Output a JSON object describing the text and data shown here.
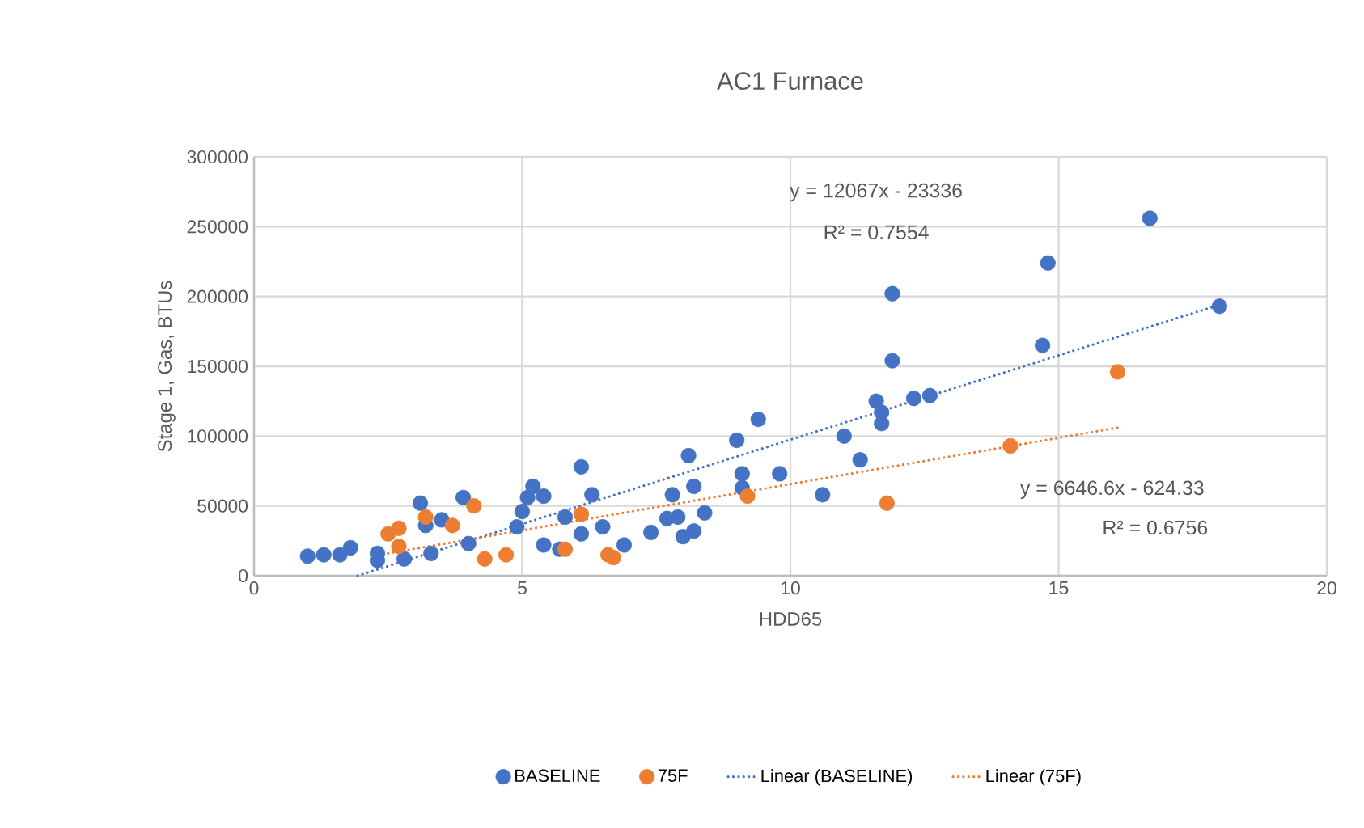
{
  "chart_data": {
    "type": "scatter",
    "title": "AC1 Furnace",
    "xlabel": "HDD65",
    "ylabel": "Stage 1, Gas, BTUs",
    "xlim": [
      0,
      20
    ],
    "xticks": [
      0,
      5,
      10,
      15,
      20
    ],
    "ylim": [
      0,
      300000
    ],
    "yticks": [
      0,
      50000,
      100000,
      150000,
      200000,
      250000,
      300000
    ],
    "grid": true,
    "legend": "bottom",
    "marker": "circle",
    "series": [
      {
        "name": "BASELINE",
        "color": "#4472c4",
        "x": [
          1.0,
          1.3,
          1.6,
          1.8,
          2.3,
          2.3,
          2.8,
          3.1,
          3.2,
          3.3,
          3.5,
          3.9,
          4.0,
          4.9,
          5.0,
          5.1,
          5.2,
          5.4,
          5.4,
          5.7,
          5.8,
          6.1,
          6.1,
          6.3,
          6.5,
          6.9,
          7.4,
          7.7,
          7.8,
          7.9,
          8.0,
          8.1,
          8.2,
          8.2,
          8.4,
          9.0,
          9.1,
          9.1,
          9.4,
          9.8,
          10.6,
          11.0,
          11.3,
          11.6,
          11.7,
          11.7,
          11.9,
          11.9,
          12.3,
          12.6,
          14.7,
          14.8,
          16.7,
          18.0
        ],
        "values": [
          14000,
          15000,
          15000,
          20000,
          16000,
          11000,
          12000,
          52000,
          36000,
          16000,
          40000,
          56000,
          23000,
          35000,
          46000,
          56000,
          64000,
          57000,
          22000,
          19000,
          42000,
          78000,
          30000,
          58000,
          35000,
          22000,
          31000,
          41000,
          58000,
          42000,
          28000,
          86000,
          64000,
          32000,
          45000,
          97000,
          73000,
          63000,
          112000,
          73000,
          58000,
          100000,
          83000,
          125000,
          117000,
          109000,
          202000,
          154000,
          127000,
          129000,
          165000,
          224000,
          256000,
          193000
        ]
      },
      {
        "name": "75F",
        "color": "#ed7d31",
        "x": [
          2.5,
          2.7,
          2.7,
          3.2,
          3.7,
          4.1,
          4.3,
          4.7,
          5.8,
          6.1,
          6.6,
          6.7,
          9.2,
          11.8,
          14.1,
          16.1
        ],
        "values": [
          30000,
          21000,
          34000,
          42000,
          36000,
          50000,
          12000,
          15000,
          19000,
          44000,
          15000,
          13000,
          57000,
          52000,
          93000,
          146000
        ]
      },
      {
        "name": "Linear (BASELINE)",
        "type": "line",
        "line_style": "dotted",
        "marker": "none",
        "color": "#4472c4",
        "x": [
          1.93,
          18.0
        ],
        "values": [
          0,
          194000
        ]
      },
      {
        "name": "Linear (75F)",
        "type": "line",
        "line_style": "dotted",
        "marker": "none",
        "color": "#ed7d31",
        "x": [
          2.5,
          16.1
        ],
        "values": [
          16000,
          106000
        ]
      }
    ],
    "annotations": [
      "y = 12067x - 23336",
      "R² = 0.7554",
      "y = 6646.6x - 624.33",
      "R² = 0.6756"
    ]
  }
}
